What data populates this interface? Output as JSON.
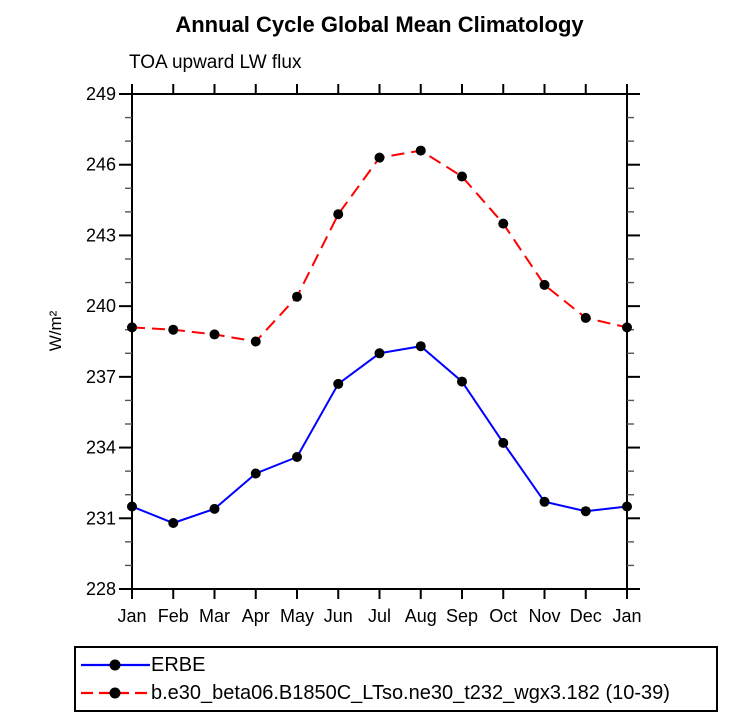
{
  "title": "Annual Cycle Global Mean Climatology",
  "chart_data": {
    "type": "line",
    "title": "Annual Cycle Global Mean Climatology",
    "subtitle": "TOA upward LW flux",
    "ylabel": "W/m²",
    "x_categories": [
      "Jan",
      "Feb",
      "Mar",
      "Apr",
      "May",
      "Jun",
      "Jul",
      "Aug",
      "Sep",
      "Oct",
      "Nov",
      "Dec",
      "Jan"
    ],
    "ylim": [
      228,
      249
    ],
    "ytick_major_step": 3,
    "ytick_minor_step": 1,
    "grid": false,
    "legend_position": "bottom-left",
    "axis_color": "#000000",
    "series": [
      {
        "name": "ERBE",
        "color": "#0000ff",
        "line_style": "solid",
        "marker": "filled-circle",
        "marker_color": "#000000",
        "values": [
          231.5,
          230.8,
          231.4,
          232.9,
          233.6,
          236.7,
          238.0,
          238.3,
          236.8,
          234.2,
          231.7,
          231.3,
          231.5
        ]
      },
      {
        "name": "b.e30_beta06.B1850C_LTso.ne30_t232_wgx3.182 (10-39)",
        "color": "#ff0000",
        "line_style": "dashed",
        "marker": "filled-circle",
        "marker_color": "#000000",
        "values": [
          239.1,
          239.0,
          238.8,
          238.5,
          240.4,
          243.9,
          246.3,
          246.6,
          245.5,
          243.5,
          240.9,
          239.5,
          239.1
        ]
      }
    ]
  }
}
